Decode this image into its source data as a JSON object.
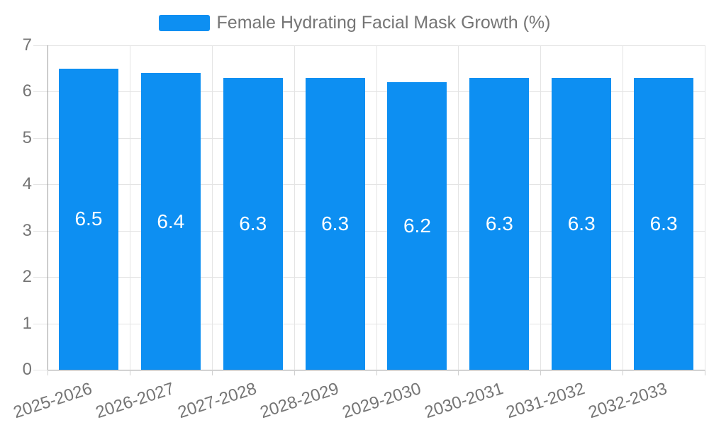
{
  "legend": {
    "items": [
      {
        "label": "Female Hydrating Facial Mask Growth (%)",
        "color": "#0d8ff2"
      }
    ]
  },
  "chart_data": {
    "type": "bar",
    "title": "",
    "categories": [
      "2025-2026",
      "2026-2027",
      "2027-2028",
      "2028-2029",
      "2029-2030",
      "2030-2031",
      "2031-2032",
      "2032-2033"
    ],
    "series": [
      {
        "name": "Female Hydrating Facial Mask Growth (%)",
        "values": [
          6.5,
          6.4,
          6.3,
          6.3,
          6.2,
          6.3,
          6.3,
          6.3
        ]
      }
    ],
    "value_labels": [
      "6.5",
      "6.4",
      "6.3",
      "6.3",
      "6.2",
      "6.3",
      "6.3",
      "6.3"
    ],
    "xlabel": "",
    "ylabel": "",
    "ylim": [
      0,
      7
    ],
    "yticks": [
      0,
      1,
      2,
      3,
      4,
      5,
      6,
      7
    ],
    "ytick_labels": [
      "0",
      "1",
      "2",
      "3",
      "4",
      "5",
      "6",
      "7"
    ],
    "grid": true,
    "legend_position": "top",
    "bar_color": "#0d8ff2",
    "value_label_color": "#ffffff"
  },
  "style": {
    "background": "#ffffff",
    "grid_color": "#e4e4e4",
    "axis_color": "#9a9a9a",
    "tick_color": "#cfcfcf",
    "text_color": "#757575"
  }
}
